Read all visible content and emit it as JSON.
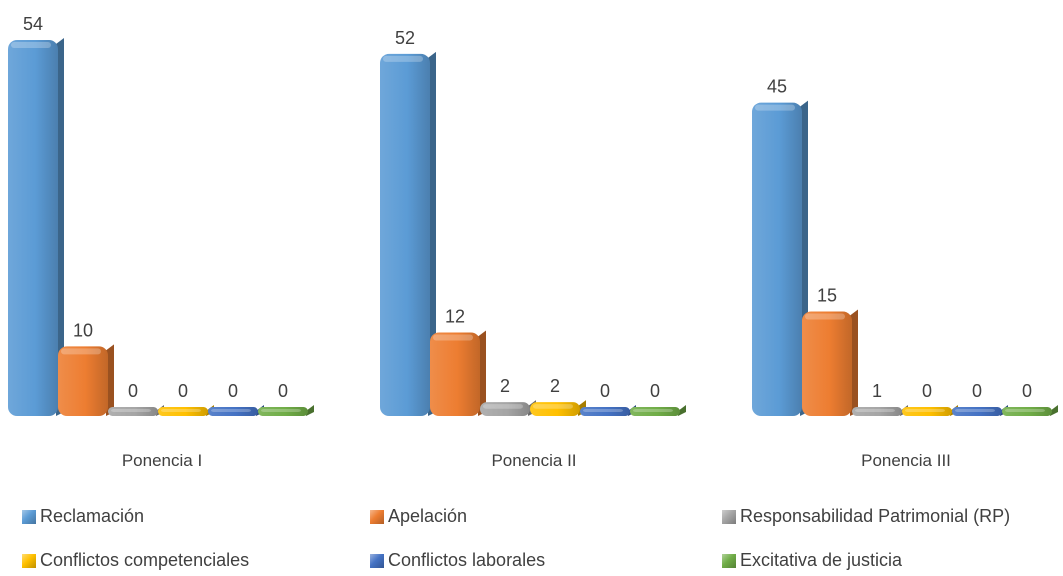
{
  "chart_data": {
    "type": "bar",
    "style": "3d-clustered",
    "categories": [
      "Ponencia I",
      "Ponencia II",
      "Ponencia III"
    ],
    "series": [
      {
        "name": "Reclamación",
        "color": "#5B9BD5",
        "values": [
          54,
          52,
          45
        ]
      },
      {
        "name": "Apelación",
        "color": "#ED7D31",
        "values": [
          10,
          12,
          15
        ]
      },
      {
        "name": "Responsabilidad Patrimonial (RP)",
        "color": "#A5A5A5",
        "values": [
          0,
          2,
          1
        ]
      },
      {
        "name": "Conflictos competenciales",
        "color": "#FFC000",
        "values": [
          0,
          2,
          0
        ]
      },
      {
        "name": "Conflictos laborales",
        "color": "#4472C4",
        "values": [
          0,
          0,
          0
        ]
      },
      {
        "name": "Excitativa de justicia",
        "color": "#70AD47",
        "values": [
          0,
          0,
          0
        ]
      }
    ],
    "data_labels": true,
    "gridlines": false,
    "legend_position": "bottom"
  }
}
